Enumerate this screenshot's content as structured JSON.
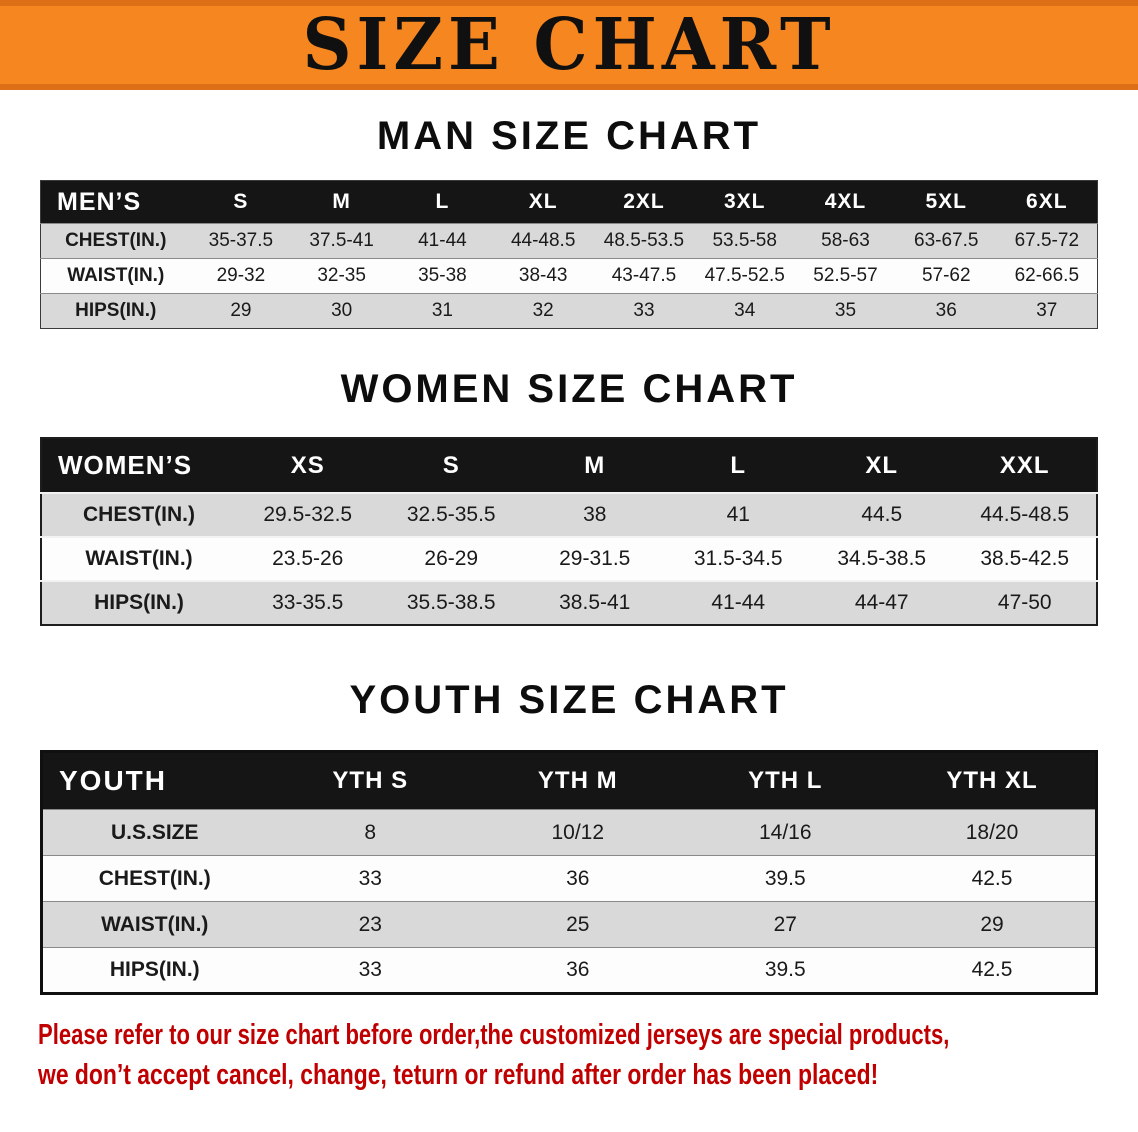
{
  "banner": {
    "title": "SIZE CHART"
  },
  "sections": {
    "men": {
      "heading": "MAN SIZE CHART",
      "table": {
        "header": [
          "MEN’S",
          "S",
          "M",
          "L",
          "XL",
          "2XL",
          "3XL",
          "4XL",
          "5XL",
          "6XL"
        ],
        "rows": [
          [
            "CHEST(IN.)",
            "35-37.5",
            "37.5-41",
            "41-44",
            "44-48.5",
            "48.5-53.5",
            "53.5-58",
            "58-63",
            "63-67.5",
            "67.5-72"
          ],
          [
            "WAIST(IN.)",
            "29-32",
            "32-35",
            "35-38",
            "38-43",
            "43-47.5",
            "47.5-52.5",
            "52.5-57",
            "57-62",
            "62-66.5"
          ],
          [
            "HIPS(IN.)",
            "29",
            "30",
            "31",
            "32",
            "33",
            "34",
            "35",
            "36",
            "37"
          ]
        ]
      }
    },
    "women": {
      "heading": "WOMEN SIZE CHART",
      "table": {
        "header": [
          "WOMEN’S",
          "XS",
          "S",
          "M",
          "L",
          "XL",
          "XXL"
        ],
        "rows": [
          [
            "CHEST(IN.)",
            "29.5-32.5",
            "32.5-35.5",
            "38",
            "41",
            "44.5",
            "44.5-48.5"
          ],
          [
            "WAIST(IN.)",
            "23.5-26",
            "26-29",
            "29-31.5",
            "31.5-34.5",
            "34.5-38.5",
            "38.5-42.5"
          ],
          [
            "HIPS(IN.)",
            "33-35.5",
            "35.5-38.5",
            "38.5-41",
            "41-44",
            "44-47",
            "47-50"
          ]
        ]
      }
    },
    "youth": {
      "heading": "YOUTH SIZE CHART",
      "table": {
        "header": [
          "YOUTH",
          "YTH S",
          "YTH M",
          "YTH L",
          "YTH XL"
        ],
        "rows": [
          [
            "U.S.SIZE",
            "8",
            "10/12",
            "14/16",
            "18/20"
          ],
          [
            "CHEST(IN.)",
            "33",
            "36",
            "39.5",
            "42.5"
          ],
          [
            "WAIST(IN.)",
            "23",
            "25",
            "27",
            "29"
          ],
          [
            "HIPS(IN.)",
            "33",
            "36",
            "39.5",
            "42.5"
          ]
        ]
      }
    }
  },
  "disclaimer": {
    "line1": "Please refer to our size chart before order,the customized jerseys are special products,",
    "line2": "we don’t accept cancel, change, teturn or refund after order has been placed!"
  },
  "colors": {
    "banner_orange": "#f6861f",
    "banner_edge": "#dd6f16",
    "table_header_black": "#151515",
    "row_gray": "#d9d9d9",
    "row_white": "#fdfdfd",
    "disclaimer_red": "#c00000",
    "text_black": "#111111"
  }
}
